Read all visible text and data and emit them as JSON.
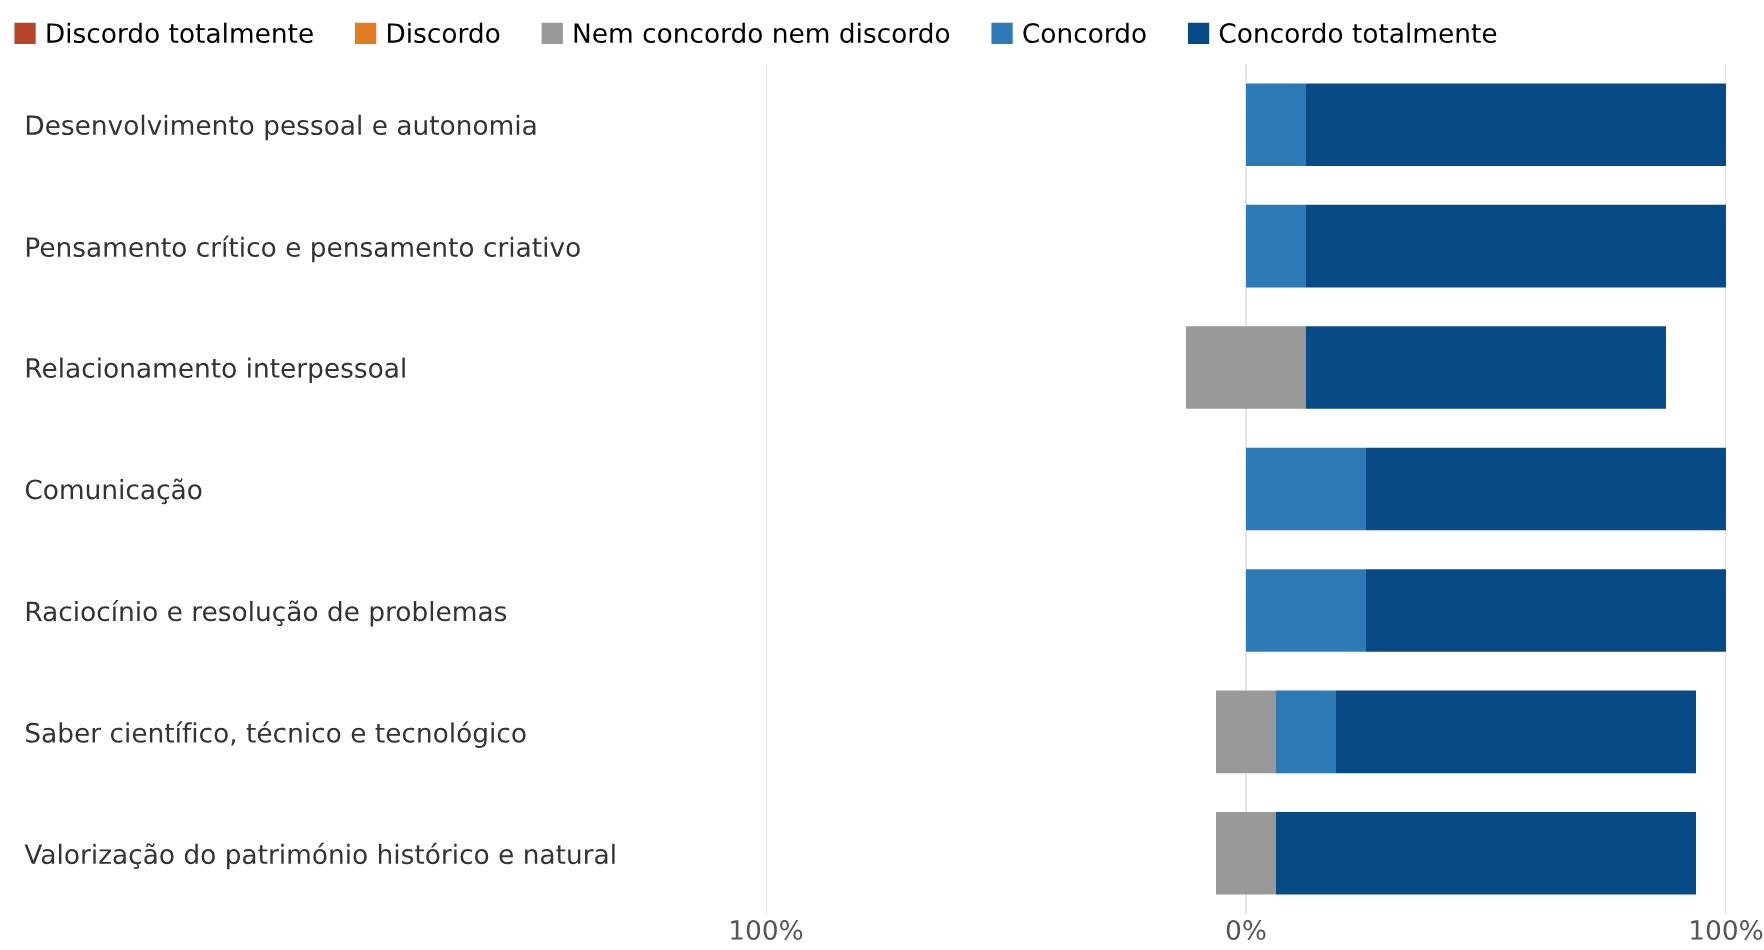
{
  "chart_data": {
    "type": "bar",
    "orientation": "horizontal",
    "stacked": true,
    "categories": [
      "Desenvolvimento pessoal e autonomia",
      "Pensamento crítico e pensamento criativo",
      "Relacionamento interpessoal",
      "Comunicação",
      "Raciocínio e resolução de problemas",
      "Saber científico, técnico e tecnológico",
      "Valorização do património histórico e natural"
    ],
    "series": [
      {
        "color": "#999999",
        "values": [
          0,
          0,
          -12.5,
          0,
          0,
          -6.25,
          -6.25
        ]
      },
      {
        "name": "Discordo totalmente",
        "color": "#b5442a",
        "values": [
          0,
          0,
          0,
          0,
          0,
          0,
          0
        ]
      },
      {
        "name": "Discordo",
        "color": "#e07b24",
        "values": [
          0,
          0,
          0,
          0,
          0,
          0,
          0
        ]
      },
      {
        "name": "Nem concordo nem discordo",
        "color": "#999999",
        "values": [
          0,
          0,
          12.5,
          0,
          0,
          6.25,
          6.25
        ]
      },
      {
        "name": "Concordo",
        "color": "#2e7ab6",
        "values": [
          12.5,
          12.5,
          0,
          25,
          25,
          12.5,
          0
        ]
      },
      {
        "name": "Concordo totalmente",
        "color": "#074a85",
        "values": [
          87.5,
          87.5,
          75,
          75,
          75,
          75,
          87.5
        ]
      }
    ],
    "xlim": [
      -100,
      100
    ],
    "xticks": [
      {
        "value": -100,
        "label": "100%"
      },
      {
        "value": 0,
        "label": "0%"
      },
      {
        "value": 100,
        "label": "100%"
      }
    ],
    "grid": "x",
    "legend": "top left"
  }
}
